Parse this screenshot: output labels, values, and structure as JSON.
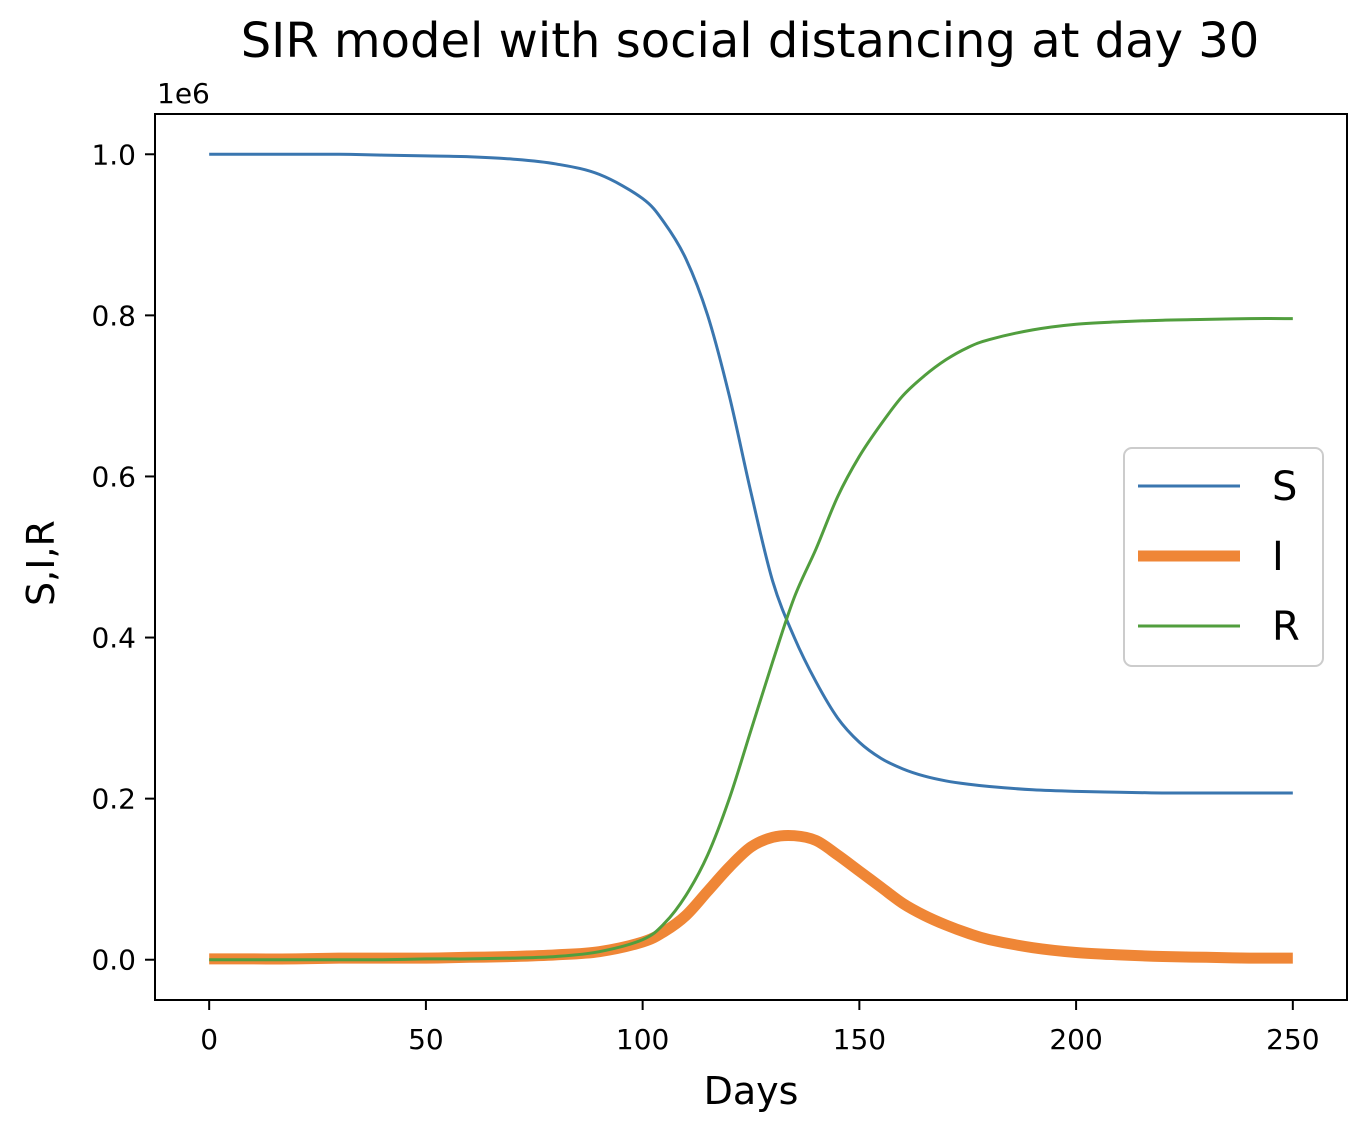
{
  "chart_data": {
    "type": "line",
    "title": "SIR model with social distancing at day 30",
    "xlabel": "Days",
    "ylabel": "S,I,R",
    "y_offset_label": "1e6",
    "xlim": [
      -12.5,
      262.5
    ],
    "ylim": [
      -0.05,
      1.05
    ],
    "xticks": [
      0,
      50,
      100,
      150,
      200,
      250
    ],
    "xtick_labels": [
      "0",
      "50",
      "100",
      "150",
      "200",
      "250"
    ],
    "yticks": [
      0.0,
      0.2,
      0.4,
      0.6,
      0.8,
      1.0
    ],
    "ytick_labels": [
      "0.0",
      "0.2",
      "0.4",
      "0.6",
      "0.8",
      "1.0"
    ],
    "grid": false,
    "legend": {
      "placement": "center-right",
      "entries": [
        "S",
        "I",
        "R"
      ]
    },
    "x": [
      0,
      10,
      20,
      30,
      40,
      50,
      60,
      70,
      80,
      90,
      100,
      105,
      110,
      115,
      120,
      125,
      130,
      135,
      140,
      145,
      150,
      155,
      160,
      165,
      170,
      175,
      180,
      190,
      200,
      210,
      220,
      230,
      240,
      250
    ],
    "series": [
      {
        "name": "S",
        "color": "#3a76af",
        "values": [
          1.0,
          1.0,
          1.0,
          1.0,
          0.999,
          0.998,
          0.997,
          0.994,
          0.988,
          0.975,
          0.945,
          0.915,
          0.87,
          0.8,
          0.7,
          0.58,
          0.47,
          0.4,
          0.345,
          0.3,
          0.27,
          0.25,
          0.237,
          0.228,
          0.222,
          0.218,
          0.215,
          0.211,
          0.209,
          0.208,
          0.207,
          0.207,
          0.207,
          0.207
        ]
      },
      {
        "name": "I",
        "color": "#ef8636",
        "values": [
          0.001,
          0.001,
          0.001,
          0.002,
          0.002,
          0.002,
          0.003,
          0.004,
          0.006,
          0.01,
          0.022,
          0.035,
          0.055,
          0.085,
          0.115,
          0.14,
          0.152,
          0.154,
          0.148,
          0.13,
          0.11,
          0.09,
          0.07,
          0.055,
          0.043,
          0.033,
          0.025,
          0.015,
          0.009,
          0.006,
          0.004,
          0.003,
          0.002,
          0.002
        ]
      },
      {
        "name": "R",
        "color": "#519e3e",
        "values": [
          0.0,
          0.0,
          0.0,
          0.0,
          0.0,
          0.001,
          0.001,
          0.002,
          0.004,
          0.01,
          0.025,
          0.045,
          0.08,
          0.13,
          0.2,
          0.285,
          0.37,
          0.45,
          0.51,
          0.575,
          0.625,
          0.665,
          0.7,
          0.725,
          0.745,
          0.76,
          0.77,
          0.782,
          0.789,
          0.792,
          0.794,
          0.795,
          0.796,
          0.796
        ]
      }
    ]
  }
}
